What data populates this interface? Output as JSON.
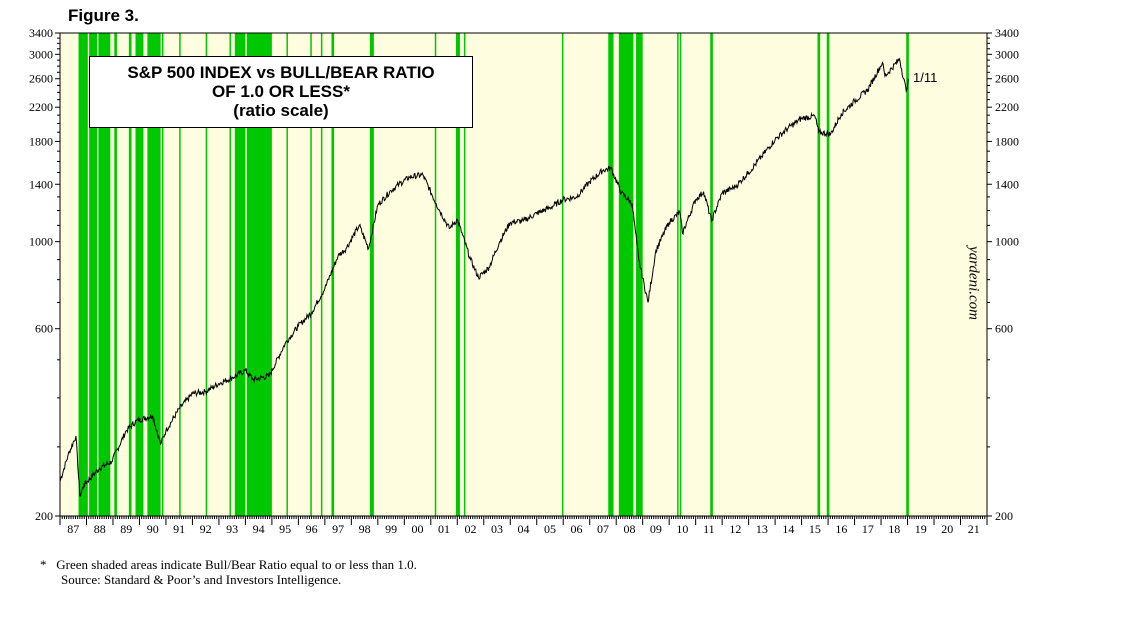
{
  "figure_label": "Figure 3.",
  "watermark": "yardeni.com",
  "footnote": {
    "star": "*",
    "line1": "Green shaded areas indicate Bull/Bear Ratio equal to or less than 1.0.",
    "line2": "Source: Standard & Poor’s and Investors Intelligence."
  },
  "chart_data": {
    "type": "line",
    "title_lines": [
      "S&P 500 INDEX vs BULL/BEAR RATIO",
      "OF 1.0 OR LESS*",
      "(ratio scale)"
    ],
    "y_scale": "log",
    "ylim": [
      200,
      3400
    ],
    "y_ticks": [
      200,
      600,
      1000,
      1400,
      1800,
      2200,
      2600,
      3000,
      3400
    ],
    "x_range": [
      1987.0,
      2022.0
    ],
    "x_tick_labels": [
      "87",
      "88",
      "89",
      "90",
      "91",
      "92",
      "93",
      "94",
      "95",
      "96",
      "97",
      "98",
      "99",
      "00",
      "01",
      "02",
      "03",
      "04",
      "05",
      "06",
      "07",
      "08",
      "09",
      "10",
      "11",
      "12",
      "13",
      "14",
      "15",
      "16",
      "17",
      "18",
      "19",
      "20",
      "21"
    ],
    "end_label": "1/11",
    "series": [
      {
        "color": "#000000",
        "points": [
          [
            1987.0,
            245
          ],
          [
            1987.3,
            285
          ],
          [
            1987.6,
            320
          ],
          [
            1987.75,
            225
          ],
          [
            1987.9,
            240
          ],
          [
            1988.5,
            265
          ],
          [
            1988.95,
            275
          ],
          [
            1989.5,
            330
          ],
          [
            1989.9,
            350
          ],
          [
            1990.5,
            360
          ],
          [
            1990.8,
            305
          ],
          [
            1991.0,
            330
          ],
          [
            1991.5,
            375
          ],
          [
            1992.0,
            410
          ],
          [
            1992.5,
            415
          ],
          [
            1993.0,
            435
          ],
          [
            1993.5,
            450
          ],
          [
            1994.0,
            470
          ],
          [
            1994.3,
            445
          ],
          [
            1994.9,
            455
          ],
          [
            1995.5,
            550
          ],
          [
            1996.0,
            610
          ],
          [
            1996.5,
            660
          ],
          [
            1997.0,
            760
          ],
          [
            1997.5,
            920
          ],
          [
            1997.8,
            960
          ],
          [
            1998.3,
            1100
          ],
          [
            1998.65,
            960
          ],
          [
            1999.0,
            1240
          ],
          [
            1999.5,
            1350
          ],
          [
            1999.8,
            1400
          ],
          [
            2000.2,
            1460
          ],
          [
            2000.7,
            1480
          ],
          [
            2001.2,
            1250
          ],
          [
            2001.7,
            1080
          ],
          [
            2002.0,
            1140
          ],
          [
            2002.5,
            900
          ],
          [
            2002.8,
            810
          ],
          [
            2003.2,
            860
          ],
          [
            2003.6,
            1000
          ],
          [
            2004.0,
            1120
          ],
          [
            2004.5,
            1130
          ],
          [
            2005.0,
            1180
          ],
          [
            2005.5,
            1220
          ],
          [
            2006.0,
            1280
          ],
          [
            2006.5,
            1300
          ],
          [
            2007.0,
            1420
          ],
          [
            2007.5,
            1520
          ],
          [
            2007.8,
            1540
          ],
          [
            2008.2,
            1330
          ],
          [
            2008.6,
            1250
          ],
          [
            2008.85,
            900
          ],
          [
            2009.2,
            700
          ],
          [
            2009.5,
            950
          ],
          [
            2010.0,
            1120
          ],
          [
            2010.4,
            1190
          ],
          [
            2010.5,
            1050
          ],
          [
            2011.0,
            1280
          ],
          [
            2011.3,
            1340
          ],
          [
            2011.6,
            1130
          ],
          [
            2012.0,
            1330
          ],
          [
            2012.5,
            1380
          ],
          [
            2013.0,
            1500
          ],
          [
            2013.5,
            1650
          ],
          [
            2014.0,
            1820
          ],
          [
            2014.5,
            1950
          ],
          [
            2015.0,
            2060
          ],
          [
            2015.5,
            2090
          ],
          [
            2015.65,
            1900
          ],
          [
            2016.1,
            1880
          ],
          [
            2016.5,
            2120
          ],
          [
            2017.0,
            2280
          ],
          [
            2017.5,
            2440
          ],
          [
            2018.05,
            2860
          ],
          [
            2018.15,
            2640
          ],
          [
            2018.7,
            2920
          ],
          [
            2018.95,
            2420
          ],
          [
            2019.03,
            2600
          ]
        ]
      }
    ],
    "shaded_regions": [
      [
        1987.7,
        1988.05
      ],
      [
        1988.1,
        1988.4
      ],
      [
        1988.45,
        1988.9
      ],
      [
        1989.05,
        1989.15
      ],
      [
        1989.6,
        1989.7
      ],
      [
        1989.85,
        1990.15
      ],
      [
        1990.3,
        1990.8
      ],
      [
        1990.85,
        1990.9
      ],
      [
        1991.5,
        1991.55
      ],
      [
        1992.5,
        1992.55
      ],
      [
        1993.4,
        1993.45
      ],
      [
        1993.6,
        1994.0
      ],
      [
        1994.05,
        1995.0
      ],
      [
        1995.55,
        1995.6
      ],
      [
        1996.45,
        1996.5
      ],
      [
        1996.85,
        1996.9
      ],
      [
        1997.25,
        1997.35
      ],
      [
        1998.7,
        1998.85
      ],
      [
        2001.15,
        2001.2
      ],
      [
        2001.95,
        2002.1
      ],
      [
        2002.25,
        2002.3
      ],
      [
        2005.95,
        2006.0
      ],
      [
        2007.7,
        2007.9
      ],
      [
        2008.1,
        2008.65
      ],
      [
        2008.75,
        2009.0
      ],
      [
        2010.3,
        2010.35
      ],
      [
        2010.4,
        2010.45
      ],
      [
        2011.55,
        2011.65
      ],
      [
        2015.6,
        2015.7
      ],
      [
        2015.95,
        2016.05
      ],
      [
        2018.95,
        2019.05
      ]
    ]
  }
}
